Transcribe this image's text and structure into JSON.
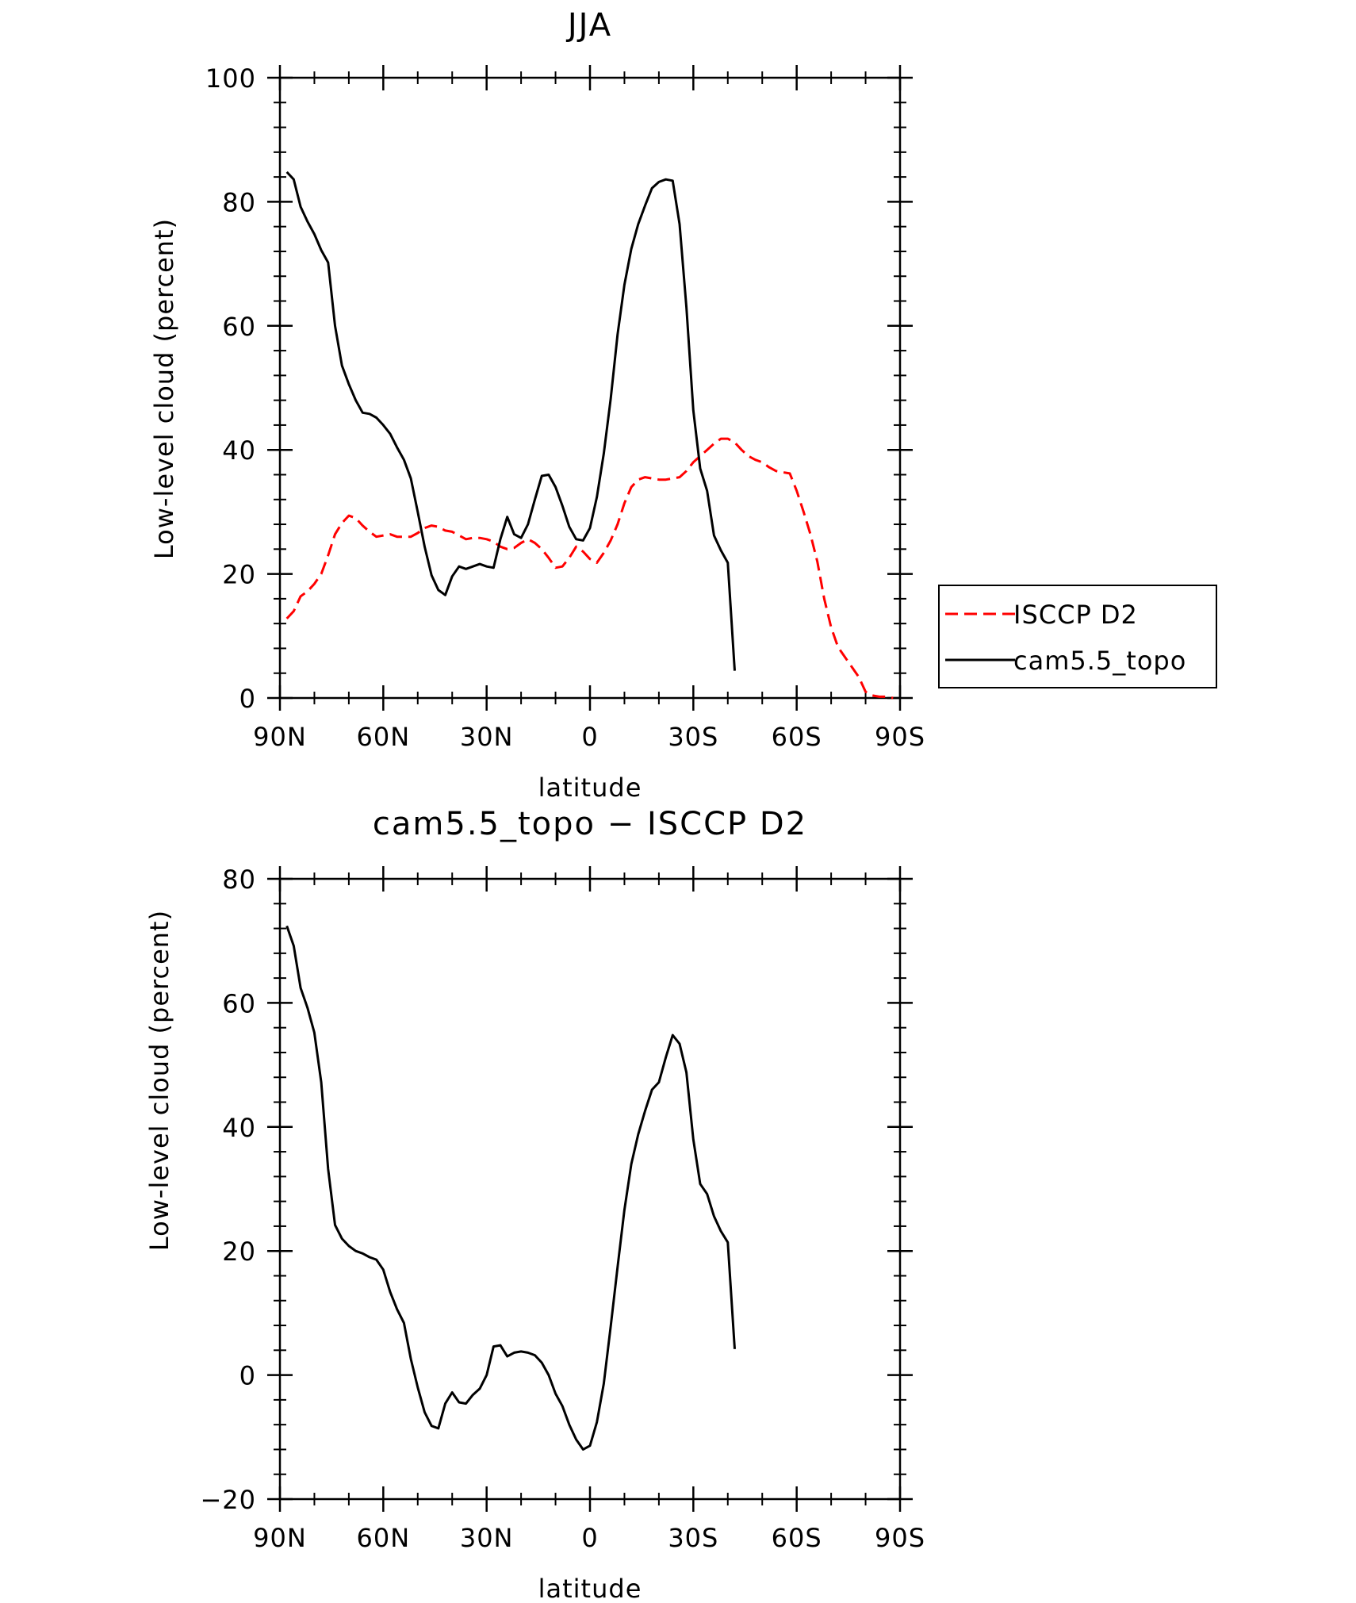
{
  "chart_data": [
    {
      "type": "line",
      "title": "JJA",
      "xlabel": "latitude",
      "ylabel": "Low-level cloud (percent)",
      "xlim": [
        90,
        -90
      ],
      "ylim": [
        0,
        100
      ],
      "xticks": [
        90,
        60,
        30,
        0,
        -30,
        -60,
        -90
      ],
      "xtick_labels": [
        "90N",
        "60N",
        "30N",
        "0",
        "30S",
        "60S",
        "90S"
      ],
      "yticks": [
        0,
        20,
        40,
        60,
        80,
        100
      ],
      "ytick_labels": [
        "0",
        "20",
        "40",
        "60",
        "80",
        "100"
      ],
      "legend_position": "right",
      "series": [
        {
          "name": "ISCCP D2",
          "color": "#ff0000",
          "dash": "dashed",
          "points": [
            [
              88,
              12.8
            ],
            [
              86,
              14
            ],
            [
              84,
              16.4
            ],
            [
              82,
              17.2
            ],
            [
              80,
              18.4
            ],
            [
              78,
              20
            ],
            [
              76,
              23
            ],
            [
              74,
              26.4
            ],
            [
              72,
              28.2
            ],
            [
              70,
              29.4
            ],
            [
              68,
              29
            ],
            [
              66,
              27.8
            ],
            [
              64,
              26.8
            ],
            [
              62,
              26
            ],
            [
              60,
              26.2
            ],
            [
              58,
              26.4
            ],
            [
              56,
              26
            ],
            [
              54,
              26
            ],
            [
              52,
              26
            ],
            [
              50,
              26.6
            ],
            [
              48,
              27.4
            ],
            [
              46,
              27.8
            ],
            [
              44,
              27.6
            ],
            [
              42,
              27
            ],
            [
              40,
              26.8
            ],
            [
              38,
              26.2
            ],
            [
              36,
              25.6
            ],
            [
              34,
              25.8
            ],
            [
              32,
              25.8
            ],
            [
              30,
              25.6
            ],
            [
              28,
              25.2
            ],
            [
              26,
              24.4
            ],
            [
              24,
              24
            ],
            [
              22,
              24.2
            ],
            [
              20,
              25
            ],
            [
              18,
              25.6
            ],
            [
              16,
              25
            ],
            [
              14,
              24
            ],
            [
              12,
              22.6
            ],
            [
              10,
              21
            ],
            [
              8,
              21.2
            ],
            [
              6,
              22.6
            ],
            [
              4,
              24.4
            ],
            [
              2,
              23.6
            ],
            [
              0,
              22.4
            ],
            [
              -2,
              21.8
            ],
            [
              -4,
              23.4
            ],
            [
              -6,
              25.4
            ],
            [
              -8,
              28
            ],
            [
              -10,
              31.4
            ],
            [
              -12,
              34
            ],
            [
              -14,
              35.2
            ],
            [
              -16,
              35.6
            ],
            [
              -18,
              35.4
            ],
            [
              -20,
              35.2
            ],
            [
              -22,
              35.2
            ],
            [
              -24,
              35.4
            ],
            [
              -26,
              35.6
            ],
            [
              -28,
              36.6
            ],
            [
              -30,
              38
            ],
            [
              -32,
              39
            ],
            [
              -34,
              40
            ],
            [
              -36,
              41
            ],
            [
              -38,
              41.8
            ],
            [
              -40,
              41.8
            ],
            [
              -42,
              41.2
            ],
            [
              -44,
              40
            ],
            [
              -46,
              39
            ],
            [
              -48,
              38.4
            ],
            [
              -50,
              38
            ],
            [
              -52,
              37.2
            ],
            [
              -54,
              36.6
            ],
            [
              -56,
              36.4
            ],
            [
              -58,
              36.2
            ],
            [
              -60,
              33.4
            ],
            [
              -62,
              30
            ],
            [
              -64,
              26.4
            ],
            [
              -66,
              22
            ],
            [
              -68,
              16
            ],
            [
              -70,
              11.4
            ],
            [
              -72,
              8.2
            ],
            [
              -74,
              6.6
            ],
            [
              -76,
              5
            ],
            [
              -78,
              3.4
            ],
            [
              -80,
              1
            ],
            [
              -82,
              0.4
            ],
            [
              -84,
              0.2
            ],
            [
              -86,
              0.2
            ],
            [
              -88,
              0
            ]
          ]
        },
        {
          "name": "cam5.5_topo",
          "color": "#000000",
          "dash": "solid",
          "points": [
            [
              88,
              84.8
            ],
            [
              86,
              83.6
            ],
            [
              84,
              79.2
            ],
            [
              82,
              76.8
            ],
            [
              80,
              74.8
            ],
            [
              78,
              72.2
            ],
            [
              76,
              70.2
            ],
            [
              74,
              60
            ],
            [
              72,
              53.6
            ],
            [
              70,
              50.6
            ],
            [
              68,
              48
            ],
            [
              66,
              46
            ],
            [
              64,
              45.8
            ],
            [
              62,
              45.2
            ],
            [
              60,
              44
            ],
            [
              58,
              42.6
            ],
            [
              56,
              40.4
            ],
            [
              54,
              38.4
            ],
            [
              52,
              35.4
            ],
            [
              50,
              30
            ],
            [
              48,
              24.4
            ],
            [
              46,
              19.8
            ],
            [
              44,
              17.4
            ],
            [
              42,
              16.6
            ],
            [
              40,
              19.6
            ],
            [
              38,
              21.2
            ],
            [
              36,
              20.8
            ],
            [
              34,
              21.2
            ],
            [
              32,
              21.6
            ],
            [
              30,
              21.2
            ],
            [
              28,
              21
            ],
            [
              26,
              25.6
            ],
            [
              24,
              29.2
            ],
            [
              22,
              26.4
            ],
            [
              20,
              25.8
            ],
            [
              18,
              28
            ],
            [
              16,
              32
            ],
            [
              14,
              35.8
            ],
            [
              12,
              36
            ],
            [
              10,
              34
            ],
            [
              8,
              31
            ],
            [
              6,
              27.6
            ],
            [
              4,
              25.6
            ],
            [
              2,
              25.4
            ],
            [
              0,
              27.4
            ],
            [
              -2,
              32.4
            ],
            [
              -4,
              39.4
            ],
            [
              -6,
              48.2
            ],
            [
              -8,
              58.6
            ],
            [
              -10,
              66.6
            ],
            [
              -12,
              72.4
            ],
            [
              -14,
              76.4
            ],
            [
              -16,
              79.4
            ],
            [
              -18,
              82.2
            ],
            [
              -20,
              83.2
            ],
            [
              -22,
              83.6
            ],
            [
              -24,
              83.4
            ],
            [
              -26,
              76.4
            ],
            [
              -28,
              63
            ],
            [
              -30,
              46.4
            ],
            [
              -32,
              37
            ],
            [
              -34,
              33.4
            ],
            [
              -36,
              26.2
            ],
            [
              -38,
              23.8
            ],
            [
              -40,
              21.8
            ],
            [
              -42,
              4.4
            ]
          ]
        }
      ]
    },
    {
      "type": "line",
      "title": "cam5.5_topo − ISCCP D2",
      "xlabel": "latitude",
      "ylabel": "Low-level cloud (percent)",
      "xlim": [
        90,
        -90
      ],
      "ylim": [
        -20,
        80
      ],
      "xticks": [
        90,
        60,
        30,
        0,
        -30,
        -60,
        -90
      ],
      "xtick_labels": [
        "90N",
        "60N",
        "30N",
        "0",
        "30S",
        "60S",
        "90S"
      ],
      "yticks": [
        -20,
        0,
        20,
        40,
        60,
        80
      ],
      "ytick_labels": [
        "−20",
        "0",
        "20",
        "40",
        "60",
        "80"
      ],
      "series": [
        {
          "color": "#000000",
          "dash": "solid",
          "points": [
            [
              88,
              72.4
            ],
            [
              86,
              69.2
            ],
            [
              84,
              62.4
            ],
            [
              82,
              59.2
            ],
            [
              80,
              55.2
            ],
            [
              78,
              47.2
            ],
            [
              76,
              33.2
            ],
            [
              74,
              24.2
            ],
            [
              72,
              22
            ],
            [
              70,
              20.8
            ],
            [
              68,
              20
            ],
            [
              66,
              19.6
            ],
            [
              64,
              19
            ],
            [
              62,
              18.6
            ],
            [
              60,
              17
            ],
            [
              58,
              13.4
            ],
            [
              56,
              10.6
            ],
            [
              54,
              8.4
            ],
            [
              52,
              2.6
            ],
            [
              50,
              -2
            ],
            [
              48,
              -6
            ],
            [
              46,
              -8.2
            ],
            [
              44,
              -8.6
            ],
            [
              42,
              -4.6
            ],
            [
              40,
              -2.8
            ],
            [
              38,
              -4.4
            ],
            [
              36,
              -4.6
            ],
            [
              34,
              -3.2
            ],
            [
              32,
              -2.2
            ],
            [
              30,
              0
            ],
            [
              28,
              4.6
            ],
            [
              26,
              4.8
            ],
            [
              24,
              3
            ],
            [
              22,
              3.6
            ],
            [
              20,
              3.8
            ],
            [
              18,
              3.6
            ],
            [
              16,
              3.2
            ],
            [
              14,
              2
            ],
            [
              12,
              0
            ],
            [
              10,
              -3
            ],
            [
              8,
              -5
            ],
            [
              6,
              -8
            ],
            [
              4,
              -10.4
            ],
            [
              2,
              -12
            ],
            [
              0,
              -11.4
            ],
            [
              -2,
              -7.6
            ],
            [
              -4,
              -1.4
            ],
            [
              -6,
              7.8
            ],
            [
              -8,
              17.4
            ],
            [
              -10,
              26.6
            ],
            [
              -12,
              34
            ],
            [
              -14,
              38.8
            ],
            [
              -16,
              42.6
            ],
            [
              -18,
              46
            ],
            [
              -20,
              47.2
            ],
            [
              -22,
              51.2
            ],
            [
              -24,
              54.8
            ],
            [
              -26,
              53.4
            ],
            [
              -28,
              48.8
            ],
            [
              -30,
              38
            ],
            [
              -32,
              30.8
            ],
            [
              -34,
              29.2
            ],
            [
              -36,
              25.6
            ],
            [
              -38,
              23.2
            ],
            [
              -40,
              21.4
            ],
            [
              -42,
              4.2
            ]
          ]
        }
      ]
    }
  ]
}
